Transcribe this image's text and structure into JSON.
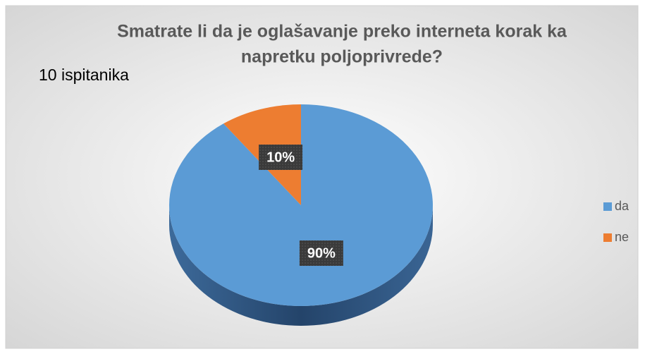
{
  "chart_data": {
    "type": "pie",
    "title": [
      "Smatrate li da je oglašavanje preko interneta korak ka",
      "napretku poljoprivrede?"
    ],
    "annotation": "10 ispitanika",
    "categories": [
      "da",
      "ne"
    ],
    "values": [
      90,
      10
    ],
    "value_labels": [
      "90%",
      "10%"
    ],
    "colors": [
      "#5b9bd5",
      "#ed7d31"
    ],
    "legend": "right"
  }
}
